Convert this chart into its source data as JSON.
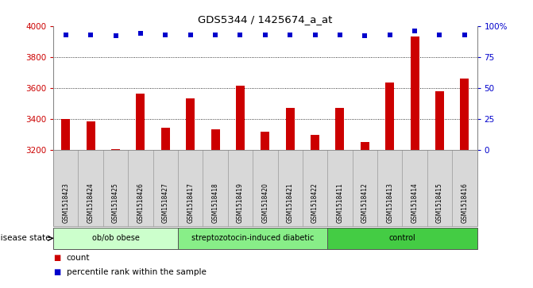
{
  "title": "GDS5344 / 1425674_a_at",
  "samples": [
    "GSM1518423",
    "GSM1518424",
    "GSM1518425",
    "GSM1518426",
    "GSM1518427",
    "GSM1518417",
    "GSM1518418",
    "GSM1518419",
    "GSM1518420",
    "GSM1518421",
    "GSM1518422",
    "GSM1518411",
    "GSM1518412",
    "GSM1518413",
    "GSM1518414",
    "GSM1518415",
    "GSM1518416"
  ],
  "counts": [
    3400,
    3385,
    3205,
    3565,
    3340,
    3530,
    3330,
    3615,
    3315,
    3470,
    3295,
    3470,
    3250,
    3635,
    3930,
    3580,
    3660
  ],
  "percentiles": [
    93,
    93,
    92,
    94,
    93,
    93,
    93,
    93,
    93,
    93,
    93,
    93,
    92,
    93,
    96,
    93,
    93
  ],
  "bar_color": "#cc0000",
  "dot_color": "#0000cc",
  "ylim_left": [
    3200,
    4000
  ],
  "ylim_right": [
    0,
    100
  ],
  "yticks_left": [
    3200,
    3400,
    3600,
    3800,
    4000
  ],
  "yticks_right": [
    0,
    25,
    50,
    75,
    100
  ],
  "ytick_labels_right": [
    "0",
    "25",
    "50",
    "75",
    "100%"
  ],
  "groups": [
    {
      "label": "ob/ob obese",
      "start": 0,
      "end": 5,
      "color": "#ccffcc"
    },
    {
      "label": "streptozotocin-induced diabetic",
      "start": 5,
      "end": 11,
      "color": "#88ee88"
    },
    {
      "label": "control",
      "start": 11,
      "end": 17,
      "color": "#44cc44"
    }
  ],
  "disease_state_label": "disease state",
  "legend_count_label": "count",
  "legend_percentile_label": "percentile rank within the sample",
  "sample_bg_color": "#d8d8d8",
  "plot_bg": "#ffffff",
  "spine_color": "#888888"
}
